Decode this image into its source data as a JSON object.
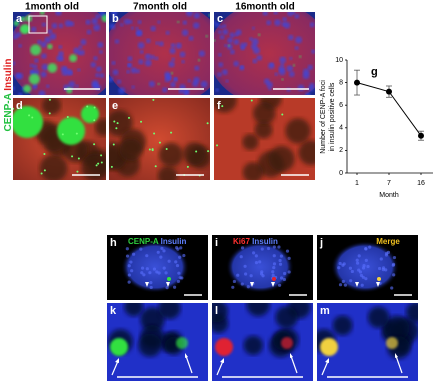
{
  "figure": {
    "top_columns": [
      "1month old",
      "7month old",
      "16month old"
    ],
    "row_label": [
      "CENP-A",
      "Insulin"
    ],
    "top_letters": [
      "a",
      "b",
      "c",
      "d",
      "e",
      "f"
    ],
    "bottom_letters": [
      "h",
      "i",
      "j",
      "k",
      "l",
      "m"
    ],
    "bottom_labels": [
      [
        "CENP-A",
        "Insulin"
      ],
      [
        "Ki67",
        "Insulin"
      ],
      [
        "Merge"
      ]
    ]
  },
  "chart_data": {
    "type": "line",
    "letter": "g",
    "ylabel": [
      "Number of CENP-A foci",
      "in insulin positive cells"
    ],
    "xlabel": "Month",
    "categories": [
      "1",
      "7",
      "16"
    ],
    "values": [
      8,
      7.2,
      3.3
    ],
    "errors": [
      1.1,
      0.5,
      0.4
    ],
    "color": "#000000",
    "ylim": [
      0,
      10
    ],
    "yticks": [
      0,
      2,
      4,
      6,
      8,
      10
    ]
  }
}
